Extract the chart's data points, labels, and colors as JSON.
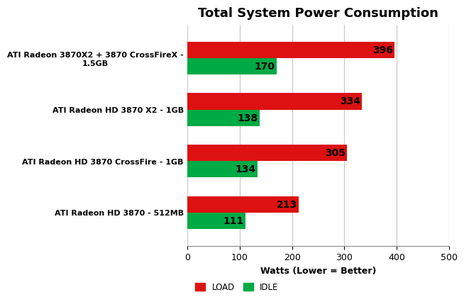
{
  "title": "Total System Power Consumption",
  "categories": [
    "ATI Radeon 3870X2 + 3870 CrossFireX -\n1.5GB",
    "ATI Radeon HD 3870 X2 - 1GB",
    "ATI Radeon HD 3870 CrossFire - 1GB",
    "ATI Radeon HD 3870 - 512MB"
  ],
  "load_values": [
    396,
    334,
    305,
    213
  ],
  "idle_values": [
    170,
    138,
    134,
    111
  ],
  "load_color": "#dd1111",
  "idle_color": "#00aa44",
  "xlabel": "Watts (Lower = Better)",
  "xlim": [
    0,
    500
  ],
  "xticks": [
    0,
    100,
    200,
    300,
    400,
    500
  ],
  "bar_height": 0.32,
  "label_fontsize": 10,
  "title_fontsize": 13,
  "axis_label_fontsize": 9,
  "tick_fontsize": 9,
  "ytick_fontsize": 8,
  "legend_labels": [
    "LOAD",
    "IDLE"
  ],
  "background_color": "#ffffff",
  "grid_color": "#c8c8c8"
}
